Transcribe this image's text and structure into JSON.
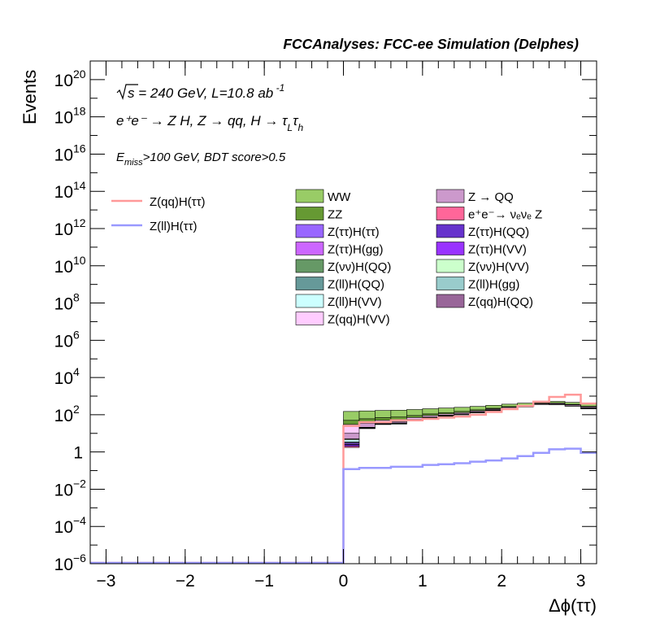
{
  "chart_data": {
    "type": "bar",
    "title": "FCCAnalyses: FCC-ee Simulation (Delphes)",
    "xlabel": "Δϕ(ττ)",
    "ylabel": "Events",
    "y_scale": "log",
    "xlim": [
      -3.2,
      3.2
    ],
    "ylim": [
      1e-06,
      1e+21
    ],
    "x_ticks": [
      {
        "value": -3,
        "label": "−3"
      },
      {
        "value": -2,
        "label": "−2"
      },
      {
        "value": -1,
        "label": "−1"
      },
      {
        "value": 0,
        "label": "0"
      },
      {
        "value": 1,
        "label": "1"
      },
      {
        "value": 2,
        "label": "2"
      },
      {
        "value": 3,
        "label": "3"
      }
    ],
    "y_ticks": [
      {
        "exp": -6,
        "label": "10",
        "sup": "−6"
      },
      {
        "exp": -4,
        "label": "10",
        "sup": "−4"
      },
      {
        "exp": -2,
        "label": "10",
        "sup": "−2"
      },
      {
        "exp": 0,
        "label": "1",
        "sup": ""
      },
      {
        "exp": 2,
        "label": "10",
        "sup": "2"
      },
      {
        "exp": 4,
        "label": "10",
        "sup": "4"
      },
      {
        "exp": 6,
        "label": "10",
        "sup": "6"
      },
      {
        "exp": 8,
        "label": "10",
        "sup": "8"
      },
      {
        "exp": 10,
        "label": "10",
        "sup": "10"
      },
      {
        "exp": 12,
        "label": "10",
        "sup": "12"
      },
      {
        "exp": 14,
        "label": "10",
        "sup": "14"
      },
      {
        "exp": 16,
        "label": "10",
        "sup": "16"
      },
      {
        "exp": 18,
        "label": "10",
        "sup": "18"
      },
      {
        "exp": 20,
        "label": "10",
        "sup": "20"
      }
    ],
    "annotations": {
      "energy_prefix": "s",
      "energy_text": " = 240 GeV, L=10.8 ab",
      "energy_sup": " -1",
      "process": "e⁺e⁻ → Z H, Z → qq, H → τ",
      "process_sub1": "L",
      "process_mid": "τ",
      "process_sub2": "h",
      "cut_prefix": "E",
      "cut_sub": "miss",
      "cut_text": ">100 GeV, BDT score>0.5"
    },
    "bin_width": 0.2,
    "bins": [
      0.0,
      0.2,
      0.4,
      0.6,
      0.8,
      1.0,
      1.2,
      1.4,
      1.6,
      1.8,
      2.0,
      2.2,
      2.4,
      2.6,
      2.8,
      3.0
    ],
    "stack_totals": [
      150,
      160,
      170,
      175,
      190,
      210,
      230,
      250,
      280,
      320,
      370,
      420,
      520,
      520,
      460,
      380
    ],
    "series": [
      {
        "name": "Z(ll)H(gg)",
        "color": "#99cccc",
        "values": [
          0.03,
          0,
          0.01,
          0.008,
          0.012,
          0.008,
          0.01,
          0.01,
          0.012,
          0.015,
          0.05,
          0.06,
          0.2,
          0.3,
          0.4,
          0.4
        ]
      },
      {
        "name": "Z(νν)H(QQ)",
        "color": "#669966",
        "values": [
          0,
          0.2,
          0,
          0,
          0.3,
          0,
          0,
          0,
          0,
          0.2,
          0,
          0.2,
          0,
          0,
          0,
          0
        ]
      },
      {
        "name": "e⁺e⁻→ νₑνₑ Z",
        "color": "#ff6699",
        "values": [
          0.25,
          0,
          0,
          0,
          0,
          0,
          0,
          0,
          0,
          0,
          0.2,
          0,
          0,
          0,
          0,
          0
        ]
      },
      {
        "name": "Z(qq)H(QQ)",
        "color": "#996699",
        "values": [
          0,
          0,
          0,
          0,
          0,
          0,
          0,
          0.0003,
          0,
          0,
          0,
          0,
          0,
          0,
          0,
          0
        ]
      },
      {
        "name": "Z(ττ)H(gg)",
        "color": "#cc66ff",
        "values": [
          0,
          0,
          0.035,
          0.04,
          0,
          0.05,
          0.08,
          0,
          0.2,
          0,
          0,
          0,
          0,
          0,
          0,
          0
        ]
      },
      {
        "name": "Z(ττ)H(VV)",
        "color": "#9933ff",
        "values": [
          0.4,
          0.4,
          0.5,
          0.5,
          0.5,
          0.5,
          0.5,
          0.5,
          0.5,
          0.6,
          0.6,
          0.6,
          0.6,
          0.7,
          0.7,
          0.7
        ]
      },
      {
        "name": "Z(ττ)H(QQ)",
        "color": "#6633cc",
        "values": [
          0.2,
          0.2,
          0.2,
          0.2,
          0.2,
          0.2,
          0.2,
          0.2,
          0.2,
          0.2,
          0.2,
          0.2,
          0.2,
          0.2,
          0.2,
          0.2
        ]
      },
      {
        "name": "Z(ττ)H(ττ)",
        "color": "#9966ff",
        "values": [
          0.5,
          0.5,
          0.5,
          0.6,
          0.6,
          0.6,
          0.6,
          0.6,
          0.6,
          0.6,
          0.6,
          0.7,
          0.7,
          0.7,
          0.8,
          0.8
        ]
      },
      {
        "name": "Z(ll)H(QQ)",
        "color": "#669999",
        "values": [
          0.4,
          0.5,
          1.6,
          2.8,
          2.8,
          3.3,
          4.4,
          3.6,
          3.6,
          4.3,
          4.4,
          3.8,
          3.4,
          5.0,
          4.9,
          6.5
        ]
      },
      {
        "name": "Z(ll)H(VV)",
        "color": "#ccffff",
        "values": [
          1.0,
          1.0,
          1.2,
          1.5,
          1.5,
          1.5,
          1.5,
          1.5,
          1.5,
          1.5,
          1.5,
          1.5,
          1.5,
          1.5,
          1.5,
          1.5
        ]
      },
      {
        "name": "Z(νν)H(VV)",
        "color": "#ccffcc",
        "values": [
          0.5,
          0.5,
          0.5,
          0.5,
          0.5,
          0.5,
          0.5,
          0.5,
          0.5,
          0.5,
          0.5,
          0.5,
          0.5,
          0.5,
          0.5,
          0.5
        ]
      },
      {
        "name": "Z → QQ",
        "color": "#cc99cc",
        "values": [
          5,
          14,
          3,
          5,
          5,
          5,
          5,
          8,
          10,
          10,
          8,
          9,
          12,
          15,
          15,
          15
        ]
      },
      {
        "name": "Z(qq)H(VV)",
        "color": "#ffccff",
        "values": [
          20,
          5,
          14,
          14,
          14,
          15,
          16,
          18,
          18,
          20,
          25,
          30,
          35,
          40,
          40,
          30
        ]
      },
      {
        "name": "ZZ",
        "color": "#669933",
        "values": [
          20,
          20,
          20,
          20,
          20,
          20,
          20,
          20,
          20,
          20,
          20,
          20,
          20,
          20,
          20,
          20
        ]
      },
      {
        "name": "WW",
        "color": "#99cc66",
        "values": [
          100,
          100,
          100,
          100,
          100,
          100,
          100,
          100,
          100,
          100,
          100,
          100,
          100,
          100,
          100,
          100
        ]
      }
    ],
    "signal_series": [
      {
        "name": "Z(qq)H(ττ)",
        "color": "#ff9999",
        "values": [
          25,
          40,
          40,
          50,
          50,
          60,
          70,
          80,
          100,
          140,
          200,
          300,
          500,
          900,
          1200,
          400
        ]
      },
      {
        "name": "Z(ll)H(ττ)",
        "color": "#9999ff",
        "values": [
          0.12,
          0.14,
          0.14,
          0.16,
          0.16,
          0.2,
          0.22,
          0.25,
          0.3,
          0.35,
          0.45,
          0.6,
          0.9,
          1.4,
          1.5,
          0.9
        ]
      }
    ],
    "legend_left": [
      "Z(qq)H(ττ)",
      "Z(ll)H(ττ)"
    ],
    "legend_col1": [
      "WW",
      "ZZ",
      "Z(ττ)H(ττ)",
      "Z(ττ)H(gg)",
      "Z(νν)H(QQ)",
      "Z(ll)H(QQ)",
      "Z(ll)H(VV)",
      "Z(qq)H(VV)"
    ],
    "legend_col2": [
      "Z → QQ",
      "e⁺e⁻→ νₑνₑ Z",
      "Z(ττ)H(QQ)",
      "Z(ττ)H(VV)",
      "Z(νν)H(VV)",
      "Z(ll)H(gg)",
      "Z(qq)H(QQ)"
    ],
    "grid": false,
    "legend_placement": "top-right"
  }
}
